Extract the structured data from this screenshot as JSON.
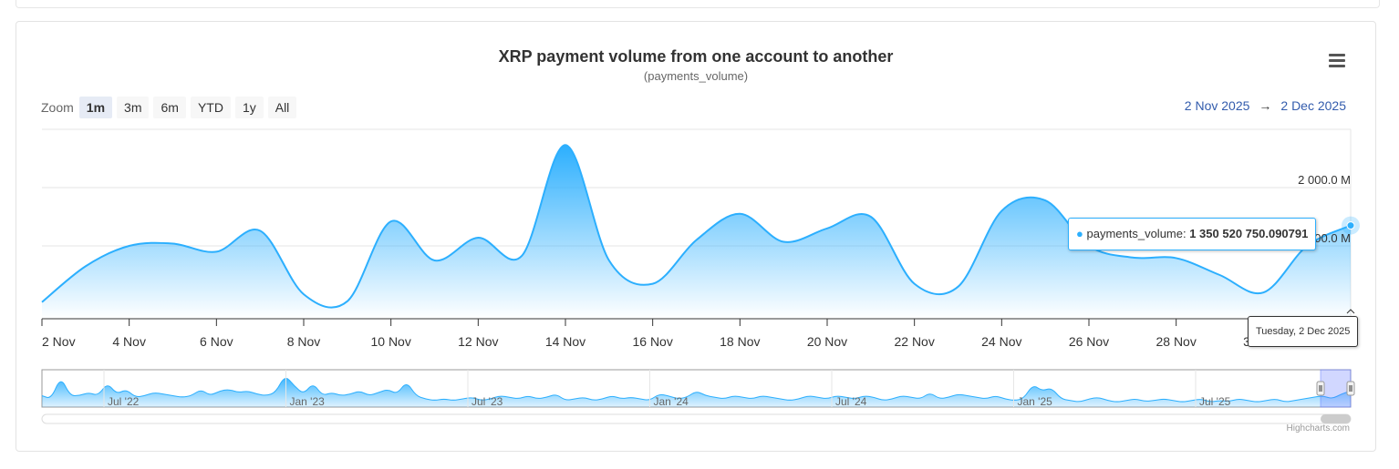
{
  "header": {
    "title": "XRP payment volume from one account to another",
    "subtitle": "(payments_volume)"
  },
  "menu": {
    "icon": "hamburger-menu-icon"
  },
  "zoom": {
    "label": "Zoom",
    "buttons": [
      "1m",
      "3m",
      "6m",
      "YTD",
      "1y",
      "All"
    ],
    "selected": "1m"
  },
  "range": {
    "from": "2 Nov 2025",
    "arrow": "→",
    "to": "2 Dec 2025"
  },
  "tooltip": {
    "series": "payments_volume",
    "separator": ": ",
    "value": "1 350 520 750.090791",
    "date": "Tuesday, 2 Dec 2025"
  },
  "credits": "Highcharts.com",
  "colors": {
    "series": "#2caffe",
    "accent": "#335cad"
  },
  "chart_data": {
    "type": "area",
    "title": "XRP payment volume from one account to another",
    "subtitle": "(payments_volume)",
    "xlabel": "",
    "ylabel": "",
    "ylim": [
      -250,
      3000
    ],
    "y_unit": "M",
    "yticks": [
      1000,
      2000
    ],
    "ytick_labels": [
      "1 000.0 M",
      "2 000.0 M"
    ],
    "grid": true,
    "xticks": [
      2,
      4,
      6,
      8,
      10,
      12,
      14,
      16,
      18,
      20,
      22,
      24,
      26,
      28,
      30
    ],
    "xtick_labels": [
      "2 Nov",
      "4 Nov",
      "6 Nov",
      "8 Nov",
      "10 Nov",
      "12 Nov",
      "14 Nov",
      "16 Nov",
      "18 Nov",
      "20 Nov",
      "22 Nov",
      "24 Nov",
      "26 Nov",
      "28 Nov",
      "30 Nov"
    ],
    "x_unit": "day index (2 = 2 Nov 2025, 32 = 2 Dec 2025)",
    "series": [
      {
        "name": "payments_volume",
        "x": [
          2,
          3,
          4,
          5,
          6,
          7,
          8,
          9,
          10,
          11,
          12,
          13,
          14,
          15,
          16,
          17,
          18,
          19,
          20,
          21,
          22,
          23,
          24,
          25,
          26,
          27,
          28,
          29,
          30,
          31,
          32
        ],
        "values": [
          35,
          650,
          1000,
          1040,
          900,
          1260,
          170,
          50,
          1420,
          750,
          1140,
          830,
          2730,
          750,
          350,
          1100,
          1550,
          1070,
          1300,
          1500,
          350,
          300,
          1600,
          1780,
          1000,
          800,
          790,
          500,
          200,
          1000,
          1350.52
        ]
      }
    ],
    "navigator": {
      "labels": [
        "Jul '22",
        "Jan '23",
        "Jul '23",
        "Jan '24",
        "Jul '24",
        "Jan '25",
        "Jul '25"
      ],
      "values": [
        0.3,
        0.2,
        0.9,
        0.3,
        0.3,
        0.4,
        0.3,
        0.7,
        0.35,
        0.5,
        0.25,
        0.3,
        0.4,
        0.35,
        0.3,
        0.25,
        0.3,
        0.5,
        0.3,
        0.45,
        0.5,
        0.4,
        0.45,
        0.35,
        0.3,
        0.4,
        0.95,
        0.6,
        0.35,
        0.7,
        0.3,
        0.4,
        0.3,
        0.35,
        0.45,
        0.3,
        0.4,
        0.5,
        0.35,
        0.75,
        0.3,
        0.2,
        0.15,
        0.2,
        0.15,
        0.2,
        0.25,
        0.15,
        0.2,
        0.3,
        0.25,
        0.2,
        0.3,
        0.2,
        0.25,
        0.35,
        0.15,
        0.2,
        0.25,
        0.15,
        0.2,
        0.3,
        0.2,
        0.25,
        0.2,
        0.15,
        0.35,
        0.3,
        0.2,
        0.25,
        0.45,
        0.3,
        0.25,
        0.2,
        0.3,
        0.25,
        0.2,
        0.3,
        0.25,
        0.2,
        0.15,
        0.2,
        0.3,
        0.25,
        0.2,
        0.3,
        0.25,
        0.2,
        0.3,
        0.25,
        0.15,
        0.2,
        0.3,
        0.25,
        0.2,
        0.4,
        0.2,
        0.25,
        0.35,
        0.3,
        0.25,
        0.2,
        0.3,
        0.2,
        0.15,
        0.2,
        0.65,
        0.45,
        0.55,
        0.2,
        0.15,
        0.1,
        0.2,
        0.25,
        0.15,
        0.1,
        0.15,
        0.2,
        0.12,
        0.15,
        0.2,
        0.15,
        0.1,
        0.15,
        0.2,
        0.1,
        0.15,
        0.12,
        0.2,
        0.15,
        0.1,
        0.15,
        0.2,
        0.1,
        0.15,
        0.2,
        0.25,
        0.3,
        0.2,
        0.35,
        0.45
      ]
    }
  }
}
